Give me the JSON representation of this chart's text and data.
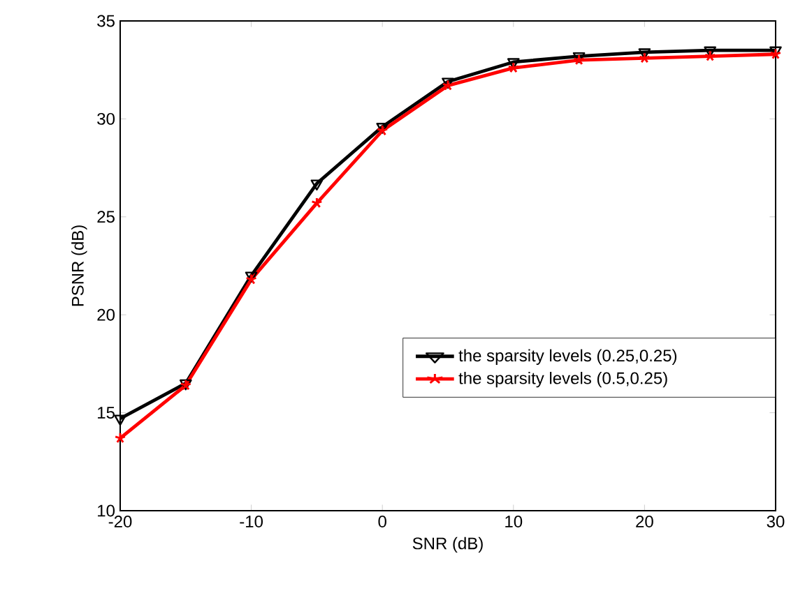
{
  "chart_data": {
    "type": "line",
    "xlabel": "SNR (dB)",
    "ylabel": "PSNR (dB)",
    "x": [
      -20,
      -15,
      -10,
      -5,
      0,
      5,
      10,
      15,
      20,
      25,
      30
    ],
    "series": [
      {
        "name": "the sparsity levels (0.25,0.25)",
        "color": "#000000",
        "marker": "triangle",
        "values": [
          14.7,
          16.5,
          22.0,
          26.7,
          29.6,
          31.9,
          32.9,
          33.2,
          33.4,
          33.5,
          33.5
        ]
      },
      {
        "name": "the sparsity levels (0.5,0.25)",
        "color": "#ff0000",
        "marker": "cross",
        "values": [
          13.7,
          16.4,
          21.8,
          25.7,
          29.4,
          31.7,
          32.6,
          33.0,
          33.1,
          33.2,
          33.3
        ]
      }
    ],
    "xlim": [
      -20,
      30
    ],
    "ylim": [
      10,
      35
    ],
    "xticks": [
      -20,
      -10,
      0,
      10,
      20,
      30
    ],
    "yticks": [
      10,
      15,
      20,
      25,
      30,
      35
    ],
    "grid": false,
    "legend": "right",
    "line_style": "solid"
  }
}
